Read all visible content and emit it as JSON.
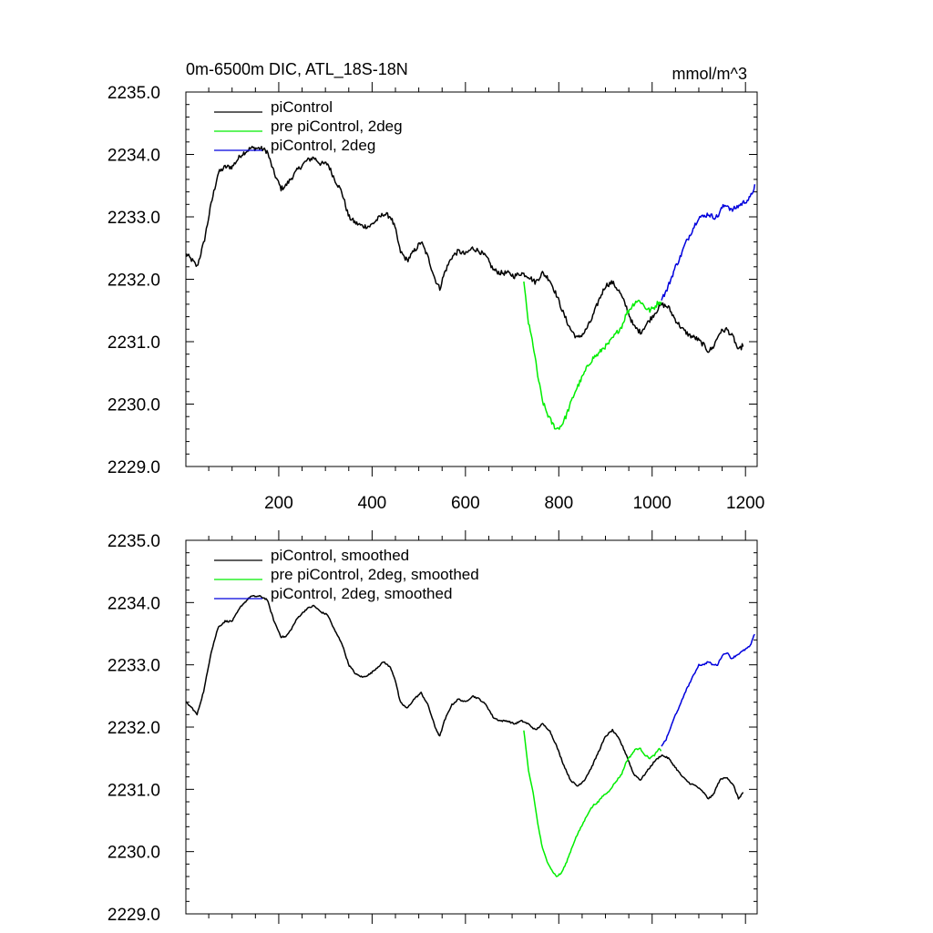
{
  "header": {
    "title": "0m-6500m DIC, ATL_18S-18N",
    "units": "mmol/m^3"
  },
  "colors": {
    "piControl": "#000000",
    "pre_piControl_2deg": "#00ee00",
    "piControl_2deg": "#0000dd",
    "axis": "#000000",
    "background": "#ffffff"
  },
  "chart_data": [
    {
      "type": "line",
      "title": "0m-6500m DIC, ATL_18S-18N",
      "units_label": "mmol/m^3",
      "xlabel": "",
      "ylabel": "",
      "xlim": [
        1,
        1225
      ],
      "ylim": [
        2229.0,
        2235.0
      ],
      "x_ticks": [
        200,
        400,
        600,
        800,
        1000,
        1200
      ],
      "x_tick_labels": [
        "200",
        "400",
        "600",
        "800",
        "1000",
        "1200"
      ],
      "y_ticks": [
        2229.0,
        2230.0,
        2231.0,
        2232.0,
        2233.0,
        2234.0,
        2235.0
      ],
      "y_tick_labels": [
        "2229.0",
        "2230.0",
        "2231.0",
        "2232.0",
        "2233.0",
        "2234.0",
        "2235.0"
      ],
      "grid": false,
      "legend_position": "top-left",
      "noise": 0.08,
      "series": [
        {
          "name": "piControl",
          "color_key": "piControl",
          "x": [
            1,
            15,
            25,
            40,
            55,
            70,
            85,
            100,
            120,
            140,
            160,
            175,
            190,
            205,
            215,
            225,
            240,
            260,
            275,
            290,
            305,
            320,
            335,
            350,
            365,
            380,
            395,
            410,
            425,
            440,
            450,
            460,
            475,
            490,
            505,
            520,
            535,
            545,
            555,
            570,
            585,
            600,
            615,
            630,
            645,
            660,
            675,
            690,
            705,
            720,
            735,
            750,
            765,
            780,
            795,
            810,
            825,
            840,
            855,
            870,
            885,
            900,
            915,
            930,
            945,
            960,
            975,
            990,
            1005,
            1020,
            1035,
            1050,
            1065,
            1080,
            1095,
            1110,
            1120,
            1130,
            1145,
            1160,
            1175,
            1185,
            1195
          ],
          "y": [
            2232.4,
            2232.3,
            2232.2,
            2232.6,
            2233.2,
            2233.7,
            2233.8,
            2233.8,
            2234.0,
            2234.1,
            2234.1,
            2234.05,
            2233.7,
            2233.45,
            2233.5,
            2233.6,
            2233.75,
            2233.9,
            2233.95,
            2233.85,
            2233.85,
            2233.6,
            2233.4,
            2233.0,
            2232.9,
            2232.85,
            2232.85,
            2232.95,
            2233.05,
            2233.0,
            2232.8,
            2232.45,
            2232.3,
            2232.45,
            2232.6,
            2232.35,
            2232.0,
            2231.85,
            2232.1,
            2232.35,
            2232.45,
            2232.4,
            2232.5,
            2232.45,
            2232.35,
            2232.15,
            2232.1,
            2232.1,
            2232.05,
            2232.1,
            2232.05,
            2231.95,
            2232.1,
            2232.0,
            2231.75,
            2231.45,
            2231.2,
            2231.05,
            2231.15,
            2231.35,
            2231.65,
            2231.9,
            2231.95,
            2231.8,
            2231.55,
            2231.25,
            2231.15,
            2231.3,
            2231.45,
            2231.6,
            2231.55,
            2231.35,
            2231.2,
            2231.1,
            2231.05,
            2230.95,
            2230.85,
            2230.9,
            2231.15,
            2231.2,
            2231.05,
            2230.85,
            2230.95
          ]
        },
        {
          "name": "pre piControl, 2deg",
          "color_key": "pre_piControl_2deg",
          "x": [
            725,
            735,
            745,
            755,
            765,
            775,
            785,
            795,
            805,
            815,
            825,
            835,
            845,
            855,
            865,
            875,
            885,
            895,
            905,
            915,
            925,
            935,
            945,
            955,
            965,
            975,
            985,
            995,
            1005,
            1015,
            1020
          ],
          "y": [
            2231.95,
            2231.3,
            2230.95,
            2230.45,
            2230.05,
            2229.85,
            2229.7,
            2229.6,
            2229.65,
            2229.8,
            2230.0,
            2230.2,
            2230.35,
            2230.5,
            2230.65,
            2230.75,
            2230.8,
            2230.9,
            2230.95,
            2231.05,
            2231.15,
            2231.25,
            2231.45,
            2231.55,
            2231.65,
            2231.65,
            2231.55,
            2231.5,
            2231.55,
            2231.65,
            2231.6
          ]
        },
        {
          "name": "piControl, 2deg",
          "color_key": "piControl_2deg",
          "x": [
            1020,
            1030,
            1040,
            1050,
            1060,
            1070,
            1080,
            1090,
            1100,
            1110,
            1120,
            1130,
            1140,
            1150,
            1160,
            1170,
            1180,
            1190,
            1200,
            1210,
            1220
          ],
          "y": [
            2231.7,
            2231.8,
            2232.0,
            2232.2,
            2232.35,
            2232.55,
            2232.7,
            2232.85,
            2233.0,
            2233.0,
            2233.05,
            2233.0,
            2233.0,
            2233.15,
            2233.2,
            2233.1,
            2233.15,
            2233.2,
            2233.25,
            2233.3,
            2233.5
          ]
        }
      ]
    },
    {
      "type": "line",
      "title": "",
      "xlabel": "",
      "ylabel": "",
      "xlim": [
        1,
        1225
      ],
      "ylim": [
        2229.0,
        2235.0
      ],
      "x_ticks": [
        200,
        400,
        600,
        800,
        1000,
        1200
      ],
      "x_tick_labels": [],
      "y_ticks": [
        2229.0,
        2230.0,
        2231.0,
        2232.0,
        2233.0,
        2234.0,
        2235.0
      ],
      "y_tick_labels": [
        "2229.0",
        "2230.0",
        "2231.0",
        "2232.0",
        "2233.0",
        "2234.0",
        "2235.0"
      ],
      "grid": false,
      "legend_position": "top-left",
      "noise": 0.025,
      "series": [
        {
          "name": "piControl, smoothed",
          "color_key": "piControl",
          "x": [
            1,
            15,
            25,
            40,
            55,
            70,
            85,
            100,
            120,
            140,
            160,
            175,
            190,
            205,
            215,
            225,
            240,
            260,
            275,
            290,
            305,
            320,
            335,
            350,
            365,
            380,
            395,
            410,
            425,
            440,
            450,
            460,
            475,
            490,
            505,
            520,
            535,
            545,
            555,
            570,
            585,
            600,
            615,
            630,
            645,
            660,
            675,
            690,
            705,
            720,
            735,
            750,
            765,
            780,
            795,
            810,
            825,
            840,
            855,
            870,
            885,
            900,
            915,
            930,
            945,
            960,
            975,
            990,
            1005,
            1020,
            1035,
            1050,
            1065,
            1080,
            1095,
            1110,
            1120,
            1130,
            1145,
            1160,
            1175,
            1185,
            1195
          ],
          "y": [
            2232.4,
            2232.3,
            2232.2,
            2232.6,
            2233.2,
            2233.6,
            2233.7,
            2233.7,
            2233.95,
            2234.1,
            2234.1,
            2234.05,
            2233.7,
            2233.45,
            2233.45,
            2233.55,
            2233.75,
            2233.9,
            2233.95,
            2233.85,
            2233.8,
            2233.55,
            2233.35,
            2233.0,
            2232.85,
            2232.8,
            2232.85,
            2232.95,
            2233.05,
            2232.95,
            2232.75,
            2232.4,
            2232.3,
            2232.45,
            2232.55,
            2232.35,
            2232.0,
            2231.85,
            2232.1,
            2232.35,
            2232.45,
            2232.4,
            2232.5,
            2232.45,
            2232.35,
            2232.15,
            2232.1,
            2232.1,
            2232.05,
            2232.1,
            2232.05,
            2231.95,
            2232.05,
            2231.95,
            2231.7,
            2231.4,
            2231.15,
            2231.05,
            2231.15,
            2231.35,
            2231.6,
            2231.85,
            2231.95,
            2231.8,
            2231.55,
            2231.25,
            2231.15,
            2231.3,
            2231.45,
            2231.55,
            2231.5,
            2231.35,
            2231.2,
            2231.1,
            2231.05,
            2230.95,
            2230.85,
            2230.9,
            2231.15,
            2231.2,
            2231.05,
            2230.85,
            2230.95
          ]
        },
        {
          "name": "pre piControl, 2deg, smoothed",
          "color_key": "pre_piControl_2deg",
          "x": [
            725,
            735,
            745,
            755,
            765,
            775,
            785,
            795,
            805,
            815,
            825,
            835,
            845,
            855,
            865,
            875,
            885,
            895,
            905,
            915,
            925,
            935,
            945,
            955,
            965,
            975,
            985,
            995,
            1005,
            1015,
            1020
          ],
          "y": [
            2231.95,
            2231.3,
            2230.95,
            2230.45,
            2230.05,
            2229.85,
            2229.7,
            2229.6,
            2229.65,
            2229.8,
            2230.0,
            2230.2,
            2230.35,
            2230.5,
            2230.65,
            2230.75,
            2230.8,
            2230.9,
            2230.95,
            2231.05,
            2231.15,
            2231.25,
            2231.45,
            2231.55,
            2231.65,
            2231.65,
            2231.55,
            2231.5,
            2231.55,
            2231.65,
            2231.6
          ]
        },
        {
          "name": "piControl, 2deg, smoothed",
          "color_key": "piControl_2deg",
          "x": [
            1020,
            1030,
            1040,
            1050,
            1060,
            1070,
            1080,
            1090,
            1100,
            1110,
            1120,
            1130,
            1140,
            1150,
            1160,
            1170,
            1180,
            1190,
            1200,
            1210,
            1220
          ],
          "y": [
            2231.7,
            2231.8,
            2232.0,
            2232.2,
            2232.35,
            2232.55,
            2232.7,
            2232.85,
            2233.0,
            2233.0,
            2233.05,
            2233.0,
            2233.0,
            2233.15,
            2233.2,
            2233.1,
            2233.15,
            2233.2,
            2233.25,
            2233.3,
            2233.5
          ]
        }
      ]
    }
  ]
}
